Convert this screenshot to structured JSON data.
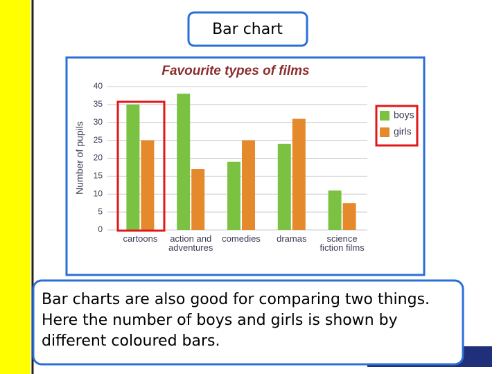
{
  "header": {
    "title": "Bar chart"
  },
  "caption": "Bar charts are also good for comparing two things. Here the number of boys and girls is shown by different coloured bars.",
  "chart_data": {
    "type": "bar",
    "title": "Favourite types of films",
    "y_label": "Number of pupils",
    "categories": [
      "cartoons",
      "action and adventures",
      "comedies",
      "dramas",
      "science fiction films"
    ],
    "series": [
      {
        "name": "boys",
        "color": "#7cc242",
        "values": [
          35,
          38,
          19,
          24,
          11
        ]
      },
      {
        "name": "girls",
        "color": "#e58a2c",
        "values": [
          25,
          17,
          25,
          31,
          7.5
        ]
      }
    ],
    "ylim": [
      0,
      40
    ],
    "yticks": [
      0,
      5,
      10,
      15,
      20,
      25,
      30,
      35,
      40
    ],
    "grid": true
  }
}
